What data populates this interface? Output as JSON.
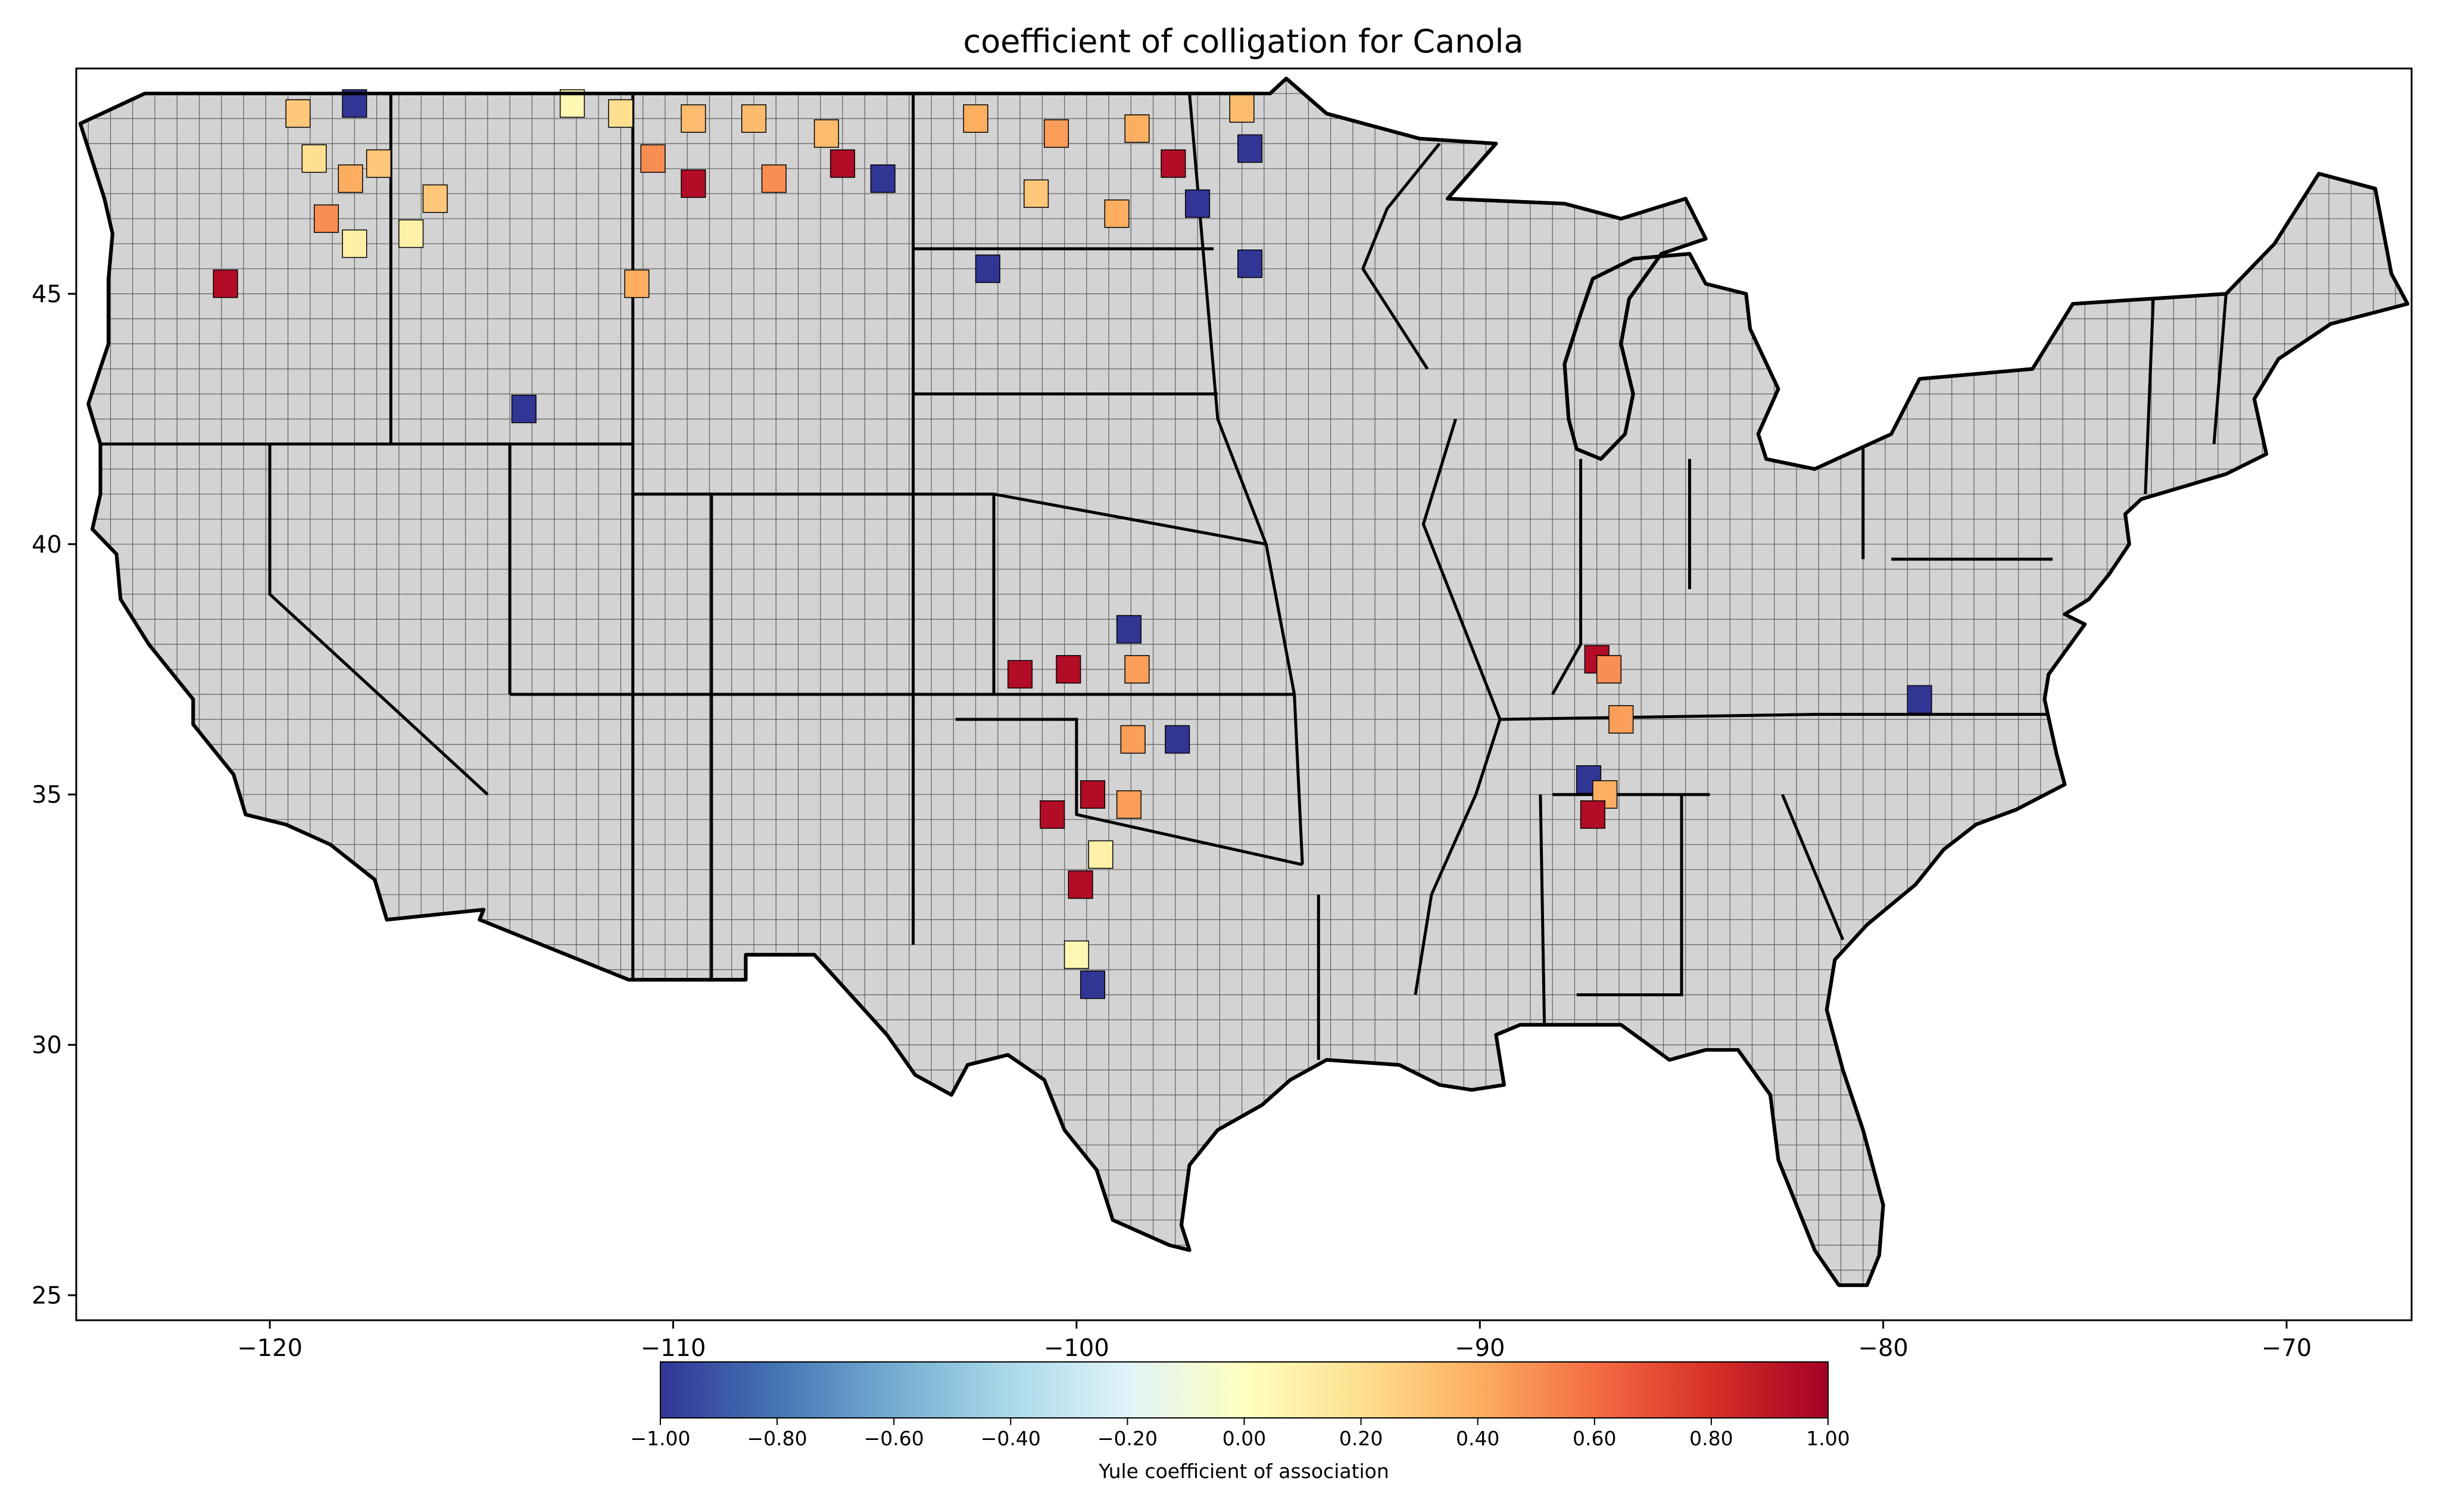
{
  "title": "coefficient of colligation for Canola",
  "map": {
    "base_fill": "#d3d3d3",
    "xlim": [
      -124.8,
      -66.9
    ],
    "ylim": [
      24.5,
      49.5
    ],
    "x_ticks": [
      {
        "value": -120,
        "label": "−120"
      },
      {
        "value": -110,
        "label": "−110"
      },
      {
        "value": -100,
        "label": "−100"
      },
      {
        "value": -90,
        "label": "−90"
      },
      {
        "value": -80,
        "label": "−80"
      },
      {
        "value": -70,
        "label": "−70"
      }
    ],
    "y_ticks": [
      {
        "value": 25,
        "label": "25"
      },
      {
        "value": 30,
        "label": "30"
      },
      {
        "value": 35,
        "label": "35"
      },
      {
        "value": 40,
        "label": "40"
      },
      {
        "value": 45,
        "label": "45"
      }
    ],
    "highlighted_regions": [
      {
        "lon": -117.9,
        "lat": 48.8,
        "value": -1.0
      },
      {
        "lon": -119.3,
        "lat": 48.6,
        "value": 0.3
      },
      {
        "lon": -118.9,
        "lat": 47.7,
        "value": 0.2
      },
      {
        "lon": -118.0,
        "lat": 47.3,
        "value": 0.4
      },
      {
        "lon": -118.6,
        "lat": 46.5,
        "value": 0.5
      },
      {
        "lon": -117.9,
        "lat": 46.0,
        "value": 0.1
      },
      {
        "lon": -116.5,
        "lat": 46.2,
        "value": 0.1
      },
      {
        "lon": -117.3,
        "lat": 47.6,
        "value": 0.3
      },
      {
        "lon": -115.9,
        "lat": 46.9,
        "value": 0.3
      },
      {
        "lon": -121.1,
        "lat": 45.2,
        "value": 0.95
      },
      {
        "lon": -112.5,
        "lat": 48.8,
        "value": 0.05
      },
      {
        "lon": -111.3,
        "lat": 48.6,
        "value": 0.2
      },
      {
        "lon": -109.5,
        "lat": 48.5,
        "value": 0.35
      },
      {
        "lon": -108.0,
        "lat": 48.5,
        "value": 0.35
      },
      {
        "lon": -106.2,
        "lat": 48.2,
        "value": 0.35
      },
      {
        "lon": -110.5,
        "lat": 47.7,
        "value": 0.5
      },
      {
        "lon": -109.5,
        "lat": 47.2,
        "value": 0.95
      },
      {
        "lon": -107.5,
        "lat": 47.3,
        "value": 0.5
      },
      {
        "lon": -105.8,
        "lat": 47.6,
        "value": 0.95
      },
      {
        "lon": -104.8,
        "lat": 47.3,
        "value": -1.0
      },
      {
        "lon": -110.9,
        "lat": 45.2,
        "value": 0.4
      },
      {
        "lon": -113.7,
        "lat": 42.7,
        "value": -1.0
      },
      {
        "lon": -102.5,
        "lat": 48.5,
        "value": 0.4
      },
      {
        "lon": -100.5,
        "lat": 48.2,
        "value": 0.45
      },
      {
        "lon": -98.5,
        "lat": 48.3,
        "value": 0.4
      },
      {
        "lon": -101.0,
        "lat": 47.0,
        "value": 0.3
      },
      {
        "lon": -99.0,
        "lat": 46.6,
        "value": 0.4
      },
      {
        "lon": -97.6,
        "lat": 47.6,
        "value": 0.95
      },
      {
        "lon": -97.0,
        "lat": 46.8,
        "value": -1.0
      },
      {
        "lon": -95.9,
        "lat": 48.7,
        "value": 0.35
      },
      {
        "lon": -95.7,
        "lat": 47.9,
        "value": -1.0
      },
      {
        "lon": -102.2,
        "lat": 45.5,
        "value": -1.0
      },
      {
        "lon": -95.7,
        "lat": 45.6,
        "value": -1.0
      },
      {
        "lon": -101.4,
        "lat": 37.4,
        "value": 0.95
      },
      {
        "lon": -100.2,
        "lat": 37.5,
        "value": 0.95
      },
      {
        "lon": -98.5,
        "lat": 37.5,
        "value": 0.45
      },
      {
        "lon": -98.7,
        "lat": 38.3,
        "value": -1.0
      },
      {
        "lon": -98.6,
        "lat": 36.1,
        "value": 0.45
      },
      {
        "lon": -97.5,
        "lat": 36.1,
        "value": -1.0
      },
      {
        "lon": -99.6,
        "lat": 35.0,
        "value": 0.95
      },
      {
        "lon": -98.7,
        "lat": 34.8,
        "value": 0.45
      },
      {
        "lon": -100.6,
        "lat": 34.6,
        "value": 0.95
      },
      {
        "lon": -99.4,
        "lat": 33.8,
        "value": 0.1
      },
      {
        "lon": -99.9,
        "lat": 33.2,
        "value": 0.95
      },
      {
        "lon": -100.0,
        "lat": 31.8,
        "value": 0.05
      },
      {
        "lon": -99.6,
        "lat": 31.2,
        "value": -1.0
      },
      {
        "lon": -87.1,
        "lat": 37.7,
        "value": 0.95
      },
      {
        "lon": -86.8,
        "lat": 37.5,
        "value": 0.5
      },
      {
        "lon": -86.5,
        "lat": 36.5,
        "value": 0.45
      },
      {
        "lon": -87.3,
        "lat": 35.3,
        "value": -1.0
      },
      {
        "lon": -86.9,
        "lat": 35.0,
        "value": 0.4
      },
      {
        "lon": -87.2,
        "lat": 34.6,
        "value": 0.95
      },
      {
        "lon": -79.1,
        "lat": 36.9,
        "value": -1.0
      }
    ]
  },
  "colorbar": {
    "label": "Yule coefficient of association",
    "range": [
      -1.0,
      1.0
    ],
    "ticks": [
      "−1.00",
      "−0.80",
      "−0.60",
      "−0.40",
      "−0.20",
      "0.00",
      "0.20",
      "0.40",
      "0.60",
      "0.80",
      "1.00"
    ],
    "colormap": [
      "#313695",
      "#4575b4",
      "#74add1",
      "#abd9e9",
      "#e0f3f8",
      "#ffffbf",
      "#fee090",
      "#fdae61",
      "#f46d43",
      "#d73027",
      "#a50026"
    ]
  }
}
